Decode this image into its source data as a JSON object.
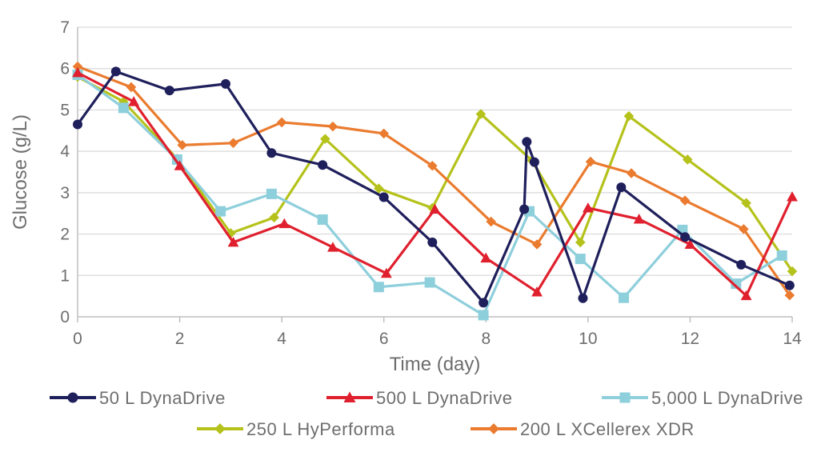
{
  "chart_data": {
    "type": "line",
    "title": "",
    "xlabel": "Time (day)",
    "ylabel": "Glucose (g/L)",
    "xlim": [
      0,
      14
    ],
    "ylim": [
      0,
      7
    ],
    "x_ticks": [
      0,
      2,
      4,
      6,
      8,
      10,
      12,
      14
    ],
    "y_ticks": [
      0,
      1,
      2,
      3,
      4,
      5,
      6,
      7
    ],
    "grid": "horizontal",
    "legend_position": "bottom",
    "series": [
      {
        "name": "50 L DynaDrive",
        "color": "#1f1f5c",
        "marker": "circle",
        "points": [
          [
            0,
            4.65
          ],
          [
            0.75,
            5.93
          ],
          [
            1.8,
            5.47
          ],
          [
            2.9,
            5.63
          ],
          [
            3.8,
            3.96
          ],
          [
            4.8,
            3.67
          ],
          [
            6.0,
            2.89
          ],
          [
            6.95,
            1.8
          ],
          [
            7.95,
            0.34
          ],
          [
            8.75,
            2.6
          ],
          [
            8.8,
            4.23
          ],
          [
            8.95,
            3.74
          ],
          [
            9.9,
            0.45
          ],
          [
            10.65,
            3.13
          ],
          [
            11.9,
            1.93
          ],
          [
            13.0,
            1.26
          ],
          [
            13.95,
            0.76
          ]
        ]
      },
      {
        "name": "500 L DynaDrive",
        "color": "#e0202e",
        "marker": "triangle",
        "points": [
          [
            0,
            5.9
          ],
          [
            1.1,
            5.2
          ],
          [
            2.0,
            3.65
          ],
          [
            3.05,
            1.8
          ],
          [
            4.05,
            2.25
          ],
          [
            5.0,
            1.68
          ],
          [
            6.05,
            1.05
          ],
          [
            7.0,
            2.6
          ],
          [
            8.0,
            1.42
          ],
          [
            9.0,
            0.6
          ],
          [
            10.0,
            2.63
          ],
          [
            11.0,
            2.36
          ],
          [
            12.0,
            1.75
          ],
          [
            13.1,
            0.51
          ],
          [
            14.0,
            2.9
          ]
        ]
      },
      {
        "name": "5,000 L DynaDrive",
        "color": "#8ecfdc",
        "marker": "square",
        "points": [
          [
            0,
            5.85
          ],
          [
            0.9,
            5.05
          ],
          [
            1.95,
            3.8
          ],
          [
            2.8,
            2.55
          ],
          [
            3.8,
            2.97
          ],
          [
            4.8,
            2.35
          ],
          [
            5.9,
            0.72
          ],
          [
            6.9,
            0.83
          ],
          [
            7.95,
            0.04
          ],
          [
            8.85,
            2.55
          ],
          [
            9.85,
            1.4
          ],
          [
            10.7,
            0.46
          ],
          [
            11.85,
            2.1
          ],
          [
            12.9,
            0.8
          ],
          [
            13.8,
            1.48
          ]
        ]
      },
      {
        "name": "250 L HyPerforma",
        "color": "#b5c21b",
        "marker": "diamond",
        "points": [
          [
            0,
            5.8
          ],
          [
            0.9,
            5.2
          ],
          [
            1.95,
            3.82
          ],
          [
            3.0,
            2.02
          ],
          [
            3.85,
            2.4
          ],
          [
            4.85,
            4.3
          ],
          [
            5.9,
            3.1
          ],
          [
            6.95,
            2.63
          ],
          [
            7.9,
            4.9
          ],
          [
            8.9,
            3.78
          ],
          [
            9.85,
            1.8
          ],
          [
            10.8,
            4.85
          ],
          [
            11.95,
            3.8
          ],
          [
            13.1,
            2.75
          ],
          [
            14.0,
            1.1
          ]
        ]
      },
      {
        "name": "200 L XCellerex XDR",
        "color": "#ea7b2f",
        "marker": "diamond",
        "points": [
          [
            0,
            6.05
          ],
          [
            1.05,
            5.55
          ],
          [
            2.05,
            4.15
          ],
          [
            3.05,
            4.2
          ],
          [
            4.0,
            4.7
          ],
          [
            5.0,
            4.6
          ],
          [
            6.0,
            4.43
          ],
          [
            6.95,
            3.65
          ],
          [
            8.1,
            2.3
          ],
          [
            9.0,
            1.75
          ],
          [
            10.05,
            3.75
          ],
          [
            10.85,
            3.47
          ],
          [
            11.9,
            2.81
          ],
          [
            13.05,
            2.12
          ],
          [
            13.95,
            0.52
          ]
        ]
      }
    ]
  }
}
